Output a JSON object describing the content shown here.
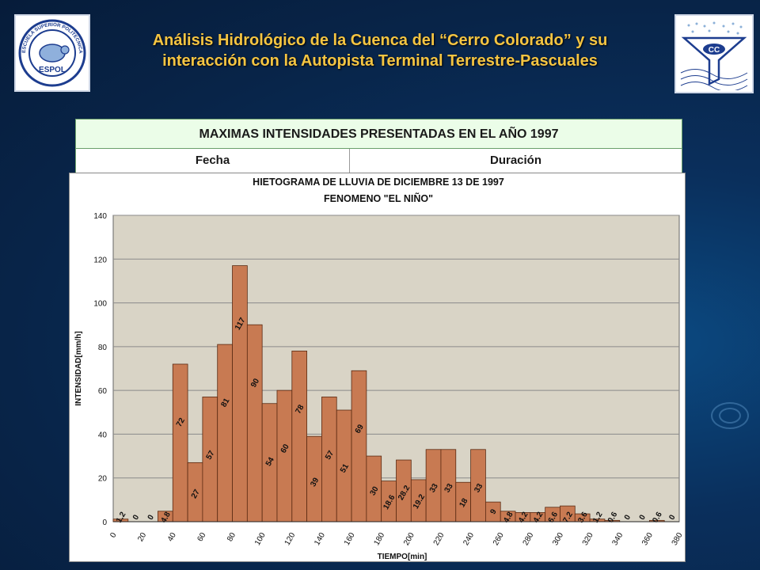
{
  "slide": {
    "title_line1": "Análisis Hidrológico de la Cuenca del “Cerro Colorado” y su",
    "title_line2": "interacción con la Autopista Terminal Terrestre-Pascuales",
    "logo_left_text": "ESPOL",
    "logo_left_ring_text": "ESCUELA SUPERIOR POLITECNICA DEL LITORAL",
    "logo_right_text": "CC"
  },
  "table": {
    "title": "MAXIMAS INTENSIDADES PRESENTADAS EN EL AÑO 1997",
    "columns": [
      "Fecha",
      "Duración"
    ]
  },
  "colors": {
    "title": "#f5c542",
    "bar": "#c87a52",
    "plot_bg": "#d9d4c6",
    "table_header_bg": "#ebfde8"
  },
  "chart_data": {
    "type": "bar",
    "title": "HIETOGRAMA DE LLUVIA DE DICIEMBRE 13 DE 1997",
    "subtitle": "FENOMENO \"EL NIÑO\"",
    "xlabel": "TIEMPO[min]",
    "ylabel": "INTENSIDAD[mm/h]",
    "ylim": [
      0,
      140
    ],
    "yticks": [
      0,
      20,
      40,
      60,
      80,
      100,
      120,
      140
    ],
    "xticks": [
      "0",
      "20",
      "40",
      "60",
      "80",
      "100",
      "120",
      "140",
      "160",
      "180",
      "200",
      "220",
      "240",
      "260",
      "280",
      "300",
      "320",
      "340",
      "360",
      "380"
    ],
    "grid": true,
    "bar_step_min": 10,
    "values": [
      1.2,
      0,
      0,
      4.8,
      72,
      27,
      57,
      81,
      117,
      90,
      54,
      60,
      78,
      39,
      57,
      51,
      69,
      30,
      18.6,
      28.2,
      19.2,
      33,
      33,
      18,
      33,
      9,
      4.8,
      4.2,
      4.2,
      6.6,
      7.2,
      3.6,
      1.2,
      0.6,
      0,
      0,
      0.6,
      0
    ],
    "labels": [
      "1.2",
      "0",
      "0",
      "4.8",
      "72",
      "27",
      "57",
      "81",
      "117",
      "90",
      "54",
      "60",
      "78",
      "39",
      "57",
      "51",
      "69",
      "30",
      "18.6",
      "28.2",
      "19.2",
      "33",
      "33",
      "18",
      "33",
      "9",
      "4.8",
      "4.2",
      "4.2",
      "6.6",
      "7.2",
      "3.6",
      "1.2",
      "0.6",
      "0",
      "0",
      "0.6",
      "0"
    ]
  }
}
